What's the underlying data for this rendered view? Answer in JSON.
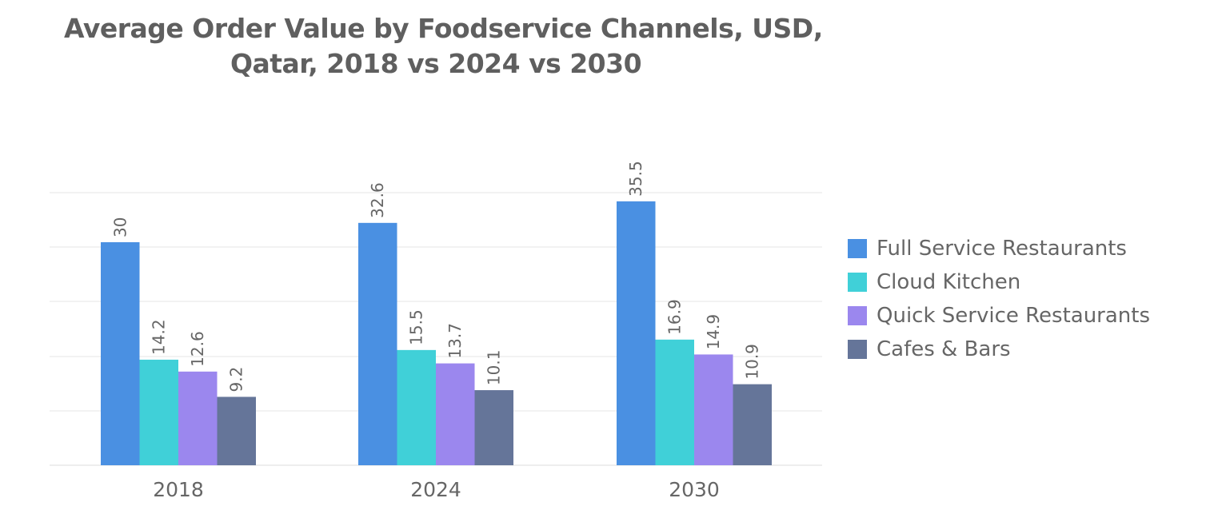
{
  "chart_data": {
    "type": "bar",
    "title_line1": "Average Order Value by Foodservice Channels, USD,",
    "title_line2": "Qatar, 2018 vs 2024 vs 2030",
    "categories": [
      "2018",
      "2024",
      "2030"
    ],
    "series": [
      {
        "name": "Full Service Restaurants",
        "color": "#4a90e2",
        "values": [
          30,
          32.6,
          35.5
        ]
      },
      {
        "name": "Cloud Kitchen",
        "color": "#40d0d8",
        "values": [
          14.2,
          15.5,
          16.9
        ]
      },
      {
        "name": "Quick Service Restaurants",
        "color": "#9b87ee",
        "values": [
          12.6,
          13.7,
          14.9
        ]
      },
      {
        "name": "Cafes & Bars",
        "color": "#657599",
        "values": [
          9.2,
          10.1,
          10.9
        ]
      }
    ],
    "xlabel": "",
    "ylabel": "",
    "ylim": [
      0,
      38
    ],
    "grid": true,
    "legend_position": "right"
  }
}
